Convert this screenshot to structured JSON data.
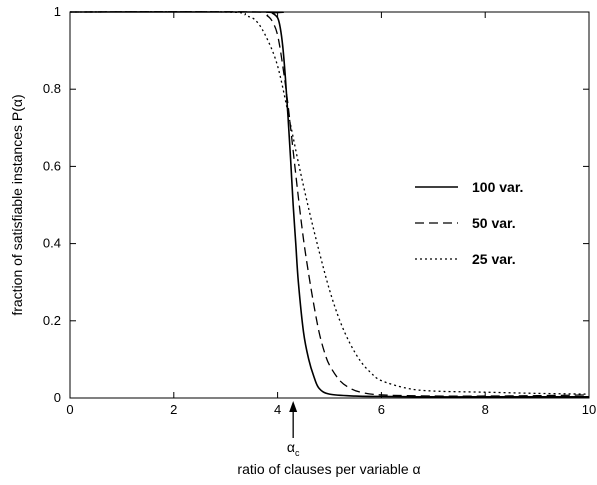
{
  "chart_data": {
    "type": "line",
    "title": "",
    "xlabel": "ratio of clauses per variable α",
    "ylabel": "fraction of satisfiable instances P(α)",
    "xlim": [
      0,
      10
    ],
    "ylim": [
      0,
      1
    ],
    "x_ticks": [
      "0",
      "2",
      "4",
      "6",
      "8",
      "10"
    ],
    "y_ticks": [
      "0",
      "0.2",
      "0.4",
      "0.6",
      "0.8",
      "1"
    ],
    "grid": false,
    "legend_position": "right",
    "annotation": {
      "text": "α",
      "subscript": "c",
      "x": 4.3
    },
    "series": [
      {
        "name": "100 var.",
        "style": "solid",
        "x": [
          0,
          3.8,
          3.9,
          4.0,
          4.05,
          4.1,
          4.15,
          4.2,
          4.25,
          4.3,
          4.35,
          4.4,
          4.5,
          4.6,
          4.7,
          4.8,
          5.0,
          5.5,
          6.0,
          7.0,
          8.0,
          9.0,
          10.0
        ],
        "y": [
          1.0,
          1.0,
          0.997,
          0.985,
          0.96,
          0.91,
          0.83,
          0.73,
          0.62,
          0.5,
          0.4,
          0.3,
          0.17,
          0.1,
          0.055,
          0.025,
          0.01,
          0.005,
          0.004,
          0.003,
          0.003,
          0.003,
          0.003
        ]
      },
      {
        "name": "50 var.",
        "style": "dashed",
        "x": [
          0,
          3.6,
          3.8,
          3.9,
          4.0,
          4.1,
          4.2,
          4.3,
          4.4,
          4.5,
          4.6,
          4.7,
          4.8,
          4.9,
          5.0,
          5.2,
          5.4,
          5.6,
          6.0,
          7.0,
          8.0,
          9.0,
          10.0
        ],
        "y": [
          1.0,
          1.0,
          0.99,
          0.975,
          0.94,
          0.86,
          0.76,
          0.64,
          0.52,
          0.41,
          0.32,
          0.24,
          0.17,
          0.12,
          0.085,
          0.045,
          0.025,
          0.015,
          0.008,
          0.005,
          0.005,
          0.006,
          0.008
        ]
      },
      {
        "name": "25 var.",
        "style": "dotted",
        "x": [
          0,
          3.0,
          3.4,
          3.6,
          3.8,
          4.0,
          4.2,
          4.4,
          4.6,
          4.8,
          5.0,
          5.2,
          5.4,
          5.6,
          5.8,
          6.0,
          6.5,
          7.0,
          8.0,
          9.0,
          10.0
        ],
        "y": [
          1.0,
          1.0,
          0.99,
          0.975,
          0.93,
          0.86,
          0.74,
          0.61,
          0.49,
          0.38,
          0.28,
          0.2,
          0.14,
          0.095,
          0.065,
          0.045,
          0.025,
          0.018,
          0.015,
          0.012,
          0.01
        ]
      }
    ]
  }
}
